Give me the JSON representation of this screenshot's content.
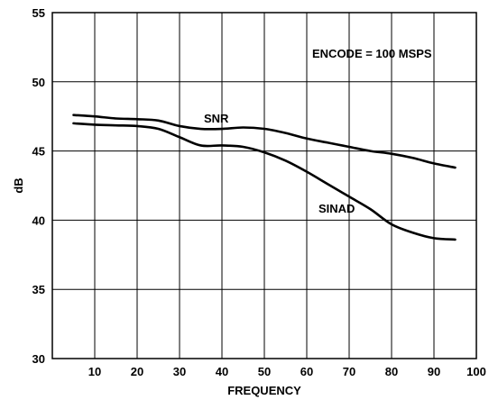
{
  "chart_data": {
    "type": "line",
    "xlabel": "FREQUENCY",
    "ylabel": "dB",
    "xlim": [
      0,
      100
    ],
    "ylim": [
      30,
      55
    ],
    "xticks": [
      10,
      20,
      30,
      40,
      50,
      60,
      70,
      80,
      90,
      100
    ],
    "yticks": [
      30,
      35,
      40,
      45,
      50,
      55
    ],
    "grid": true,
    "annotation": "ENCODE = 100 MSPS",
    "series": [
      {
        "name": "SNR",
        "x": [
          5,
          10,
          15,
          20,
          25,
          30,
          35,
          40,
          45,
          50,
          55,
          60,
          65,
          70,
          75,
          80,
          85,
          90,
          95
        ],
        "y": [
          47.6,
          47.5,
          47.35,
          47.3,
          47.2,
          46.8,
          46.6,
          46.6,
          46.7,
          46.6,
          46.3,
          45.9,
          45.6,
          45.3,
          45.0,
          44.8,
          44.5,
          44.1,
          43.8
        ]
      },
      {
        "name": "SINAD",
        "x": [
          5,
          10,
          15,
          20,
          25,
          30,
          35,
          40,
          45,
          50,
          55,
          60,
          65,
          70,
          75,
          80,
          85,
          90,
          95
        ],
        "y": [
          47.0,
          46.9,
          46.85,
          46.8,
          46.6,
          46.0,
          45.4,
          45.4,
          45.3,
          44.9,
          44.3,
          43.5,
          42.6,
          41.7,
          40.8,
          39.7,
          39.1,
          38.7,
          38.6
        ]
      }
    ]
  }
}
